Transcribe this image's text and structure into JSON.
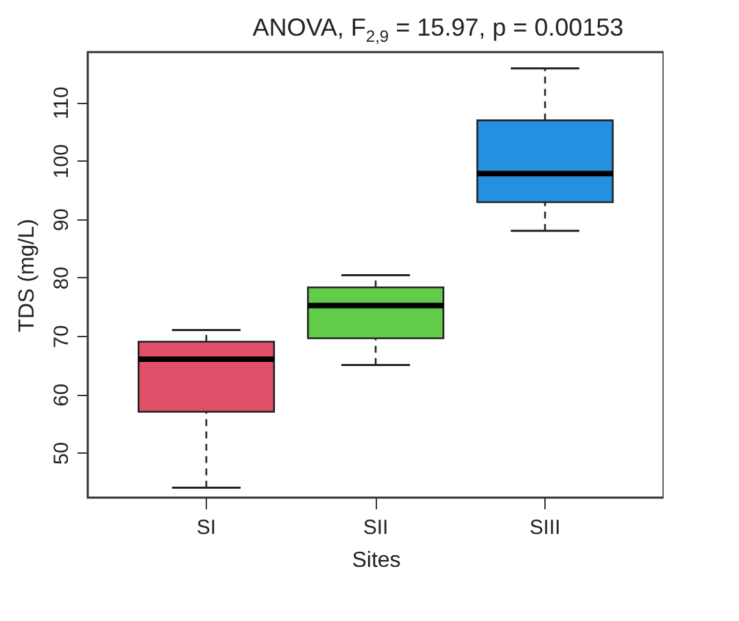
{
  "chart_data": {
    "type": "box",
    "title": "ANOVA, F$_{2,9}$ = 15.97, p = 0.00153",
    "xlabel": "Sites",
    "ylabel": "TDS (mg/L)",
    "categories": [
      "SI",
      "SII",
      "SIII"
    ],
    "colors": [
      "#e05068",
      "#62cc4a",
      "#2590e0"
    ],
    "boxes": [
      {
        "low": 44,
        "q1": 57,
        "median": 66,
        "q3": 69,
        "high": 71
      },
      {
        "low": 65,
        "q1": 69.6,
        "median": 75.2,
        "q3": 78.3,
        "high": 80.4
      },
      {
        "low": 88,
        "q1": 92.9,
        "median": 97.8,
        "q3": 106.9,
        "high": 115.8
      }
    ],
    "ylim": [
      42.3,
      118.6
    ],
    "yticks": [
      50,
      60,
      70,
      80,
      90,
      100,
      110
    ],
    "grid": false,
    "legend": false
  }
}
